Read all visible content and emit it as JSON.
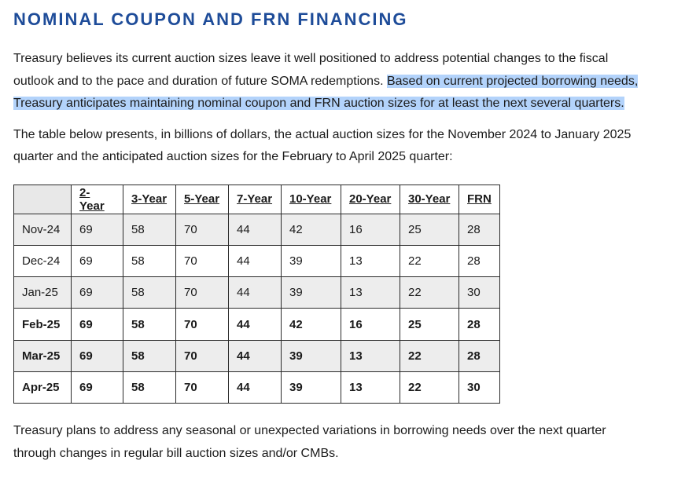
{
  "heading": "NOMINAL COUPON AND FRN FINANCING",
  "para1": {
    "plain": "Treasury believes its current auction sizes leave it well positioned to address potential changes to the fiscal outlook and to the pace and duration of future SOMA redemptions. ",
    "highlighted": "Based on current projected borrowing needs, Treasury anticipates maintaining nominal coupon and FRN auction sizes for at least the next several quarters."
  },
  "para2": "The table below presents, in billions of dollars, the actual auction sizes for the November 2024 to January 2025 quarter and the anticipated auction sizes for the February to April 2025 quarter:",
  "table": {
    "headers": [
      "",
      "2-Year",
      "3-Year",
      "5-Year",
      "7-Year",
      "10-Year",
      "20-Year",
      "30-Year",
      "FRN"
    ],
    "rows": [
      {
        "label": "Nov-24",
        "values": [
          "69",
          "58",
          "70",
          "44",
          "42",
          "16",
          "25",
          "28"
        ]
      },
      {
        "label": "Dec-24",
        "values": [
          "69",
          "58",
          "70",
          "44",
          "39",
          "13",
          "22",
          "28"
        ]
      },
      {
        "label": "Jan-25",
        "values": [
          "69",
          "58",
          "70",
          "44",
          "39",
          "13",
          "22",
          "30"
        ]
      },
      {
        "label": "Feb-25",
        "values": [
          "69",
          "58",
          "70",
          "44",
          "42",
          "16",
          "25",
          "28"
        ]
      },
      {
        "label": "Mar-25",
        "values": [
          "69",
          "58",
          "70",
          "44",
          "39",
          "13",
          "22",
          "28"
        ]
      },
      {
        "label": "Apr-25",
        "values": [
          "69",
          "58",
          "70",
          "44",
          "39",
          "13",
          "22",
          "30"
        ]
      }
    ]
  },
  "para3": "Treasury plans to address any seasonal or unexpected variations in borrowing needs over the next quarter through changes in regular bill auction sizes and/or CMBs.",
  "colors": {
    "heading": "#1e4c99",
    "highlight": "#b3d3fb",
    "shade": "#ededed"
  }
}
